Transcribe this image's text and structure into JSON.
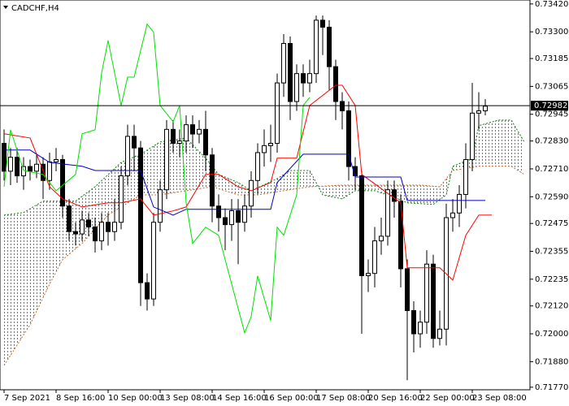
{
  "chart_data": {
    "type": "candlestick",
    "title": "CADCHF,H4",
    "up_color": "#ffffff",
    "down_color": "#000000",
    "open": [
      0.7282,
      0.727,
      0.7276,
      0.7268,
      0.7272,
      0.727,
      0.7273,
      0.7266,
      0.7274,
      0.7275,
      0.7255,
      0.7244,
      0.7243,
      0.7249,
      0.7246,
      0.724,
      0.7248,
      0.7244,
      0.7248,
      0.7268,
      0.7285,
      0.728,
      0.7222,
      0.7215,
      0.7248,
      0.7262,
      0.7288,
      0.7282,
      0.7283,
      0.729,
      0.7286,
      0.7288,
      0.7277,
      0.7255,
      0.725,
      0.7247,
      0.7253,
      0.7248,
      0.7255,
      0.7266,
      0.7278,
      0.7281,
      0.7282,
      0.7308,
      0.7325,
      0.73,
      0.7312,
      0.7308,
      0.7312,
      0.7335,
      0.7332,
      0.7315,
      0.73,
      0.7296,
      0.7272,
      0.7268,
      0.7225,
      0.7226,
      0.724,
      0.7242,
      0.7262,
      0.7257,
      0.7228,
      0.721,
      0.72,
      0.7205,
      0.723,
      0.7198,
      0.7202,
      0.725,
      0.7252,
      0.726,
      0.7275,
      0.7295,
      0.7296
    ],
    "high": [
      0.7288,
      0.728,
      0.728,
      0.7276,
      0.7275,
      0.7277,
      0.7276,
      0.7278,
      0.728,
      0.7277,
      0.7258,
      0.7248,
      0.7253,
      0.7252,
      0.725,
      0.7252,
      0.7252,
      0.7258,
      0.7272,
      0.729,
      0.729,
      0.7283,
      0.7226,
      0.7252,
      0.7266,
      0.7292,
      0.7292,
      0.7288,
      0.7294,
      0.7294,
      0.7292,
      0.7296,
      0.728,
      0.726,
      0.7254,
      0.7258,
      0.7258,
      0.726,
      0.727,
      0.7282,
      0.7288,
      0.729,
      0.7312,
      0.7329,
      0.7328,
      0.7316,
      0.7316,
      0.7318,
      0.7337,
      0.7337,
      0.7335,
      0.7318,
      0.7304,
      0.73,
      0.7276,
      0.727,
      0.7232,
      0.7246,
      0.725,
      0.7266,
      0.7266,
      0.726,
      0.7232,
      0.7214,
      0.721,
      0.7236,
      0.7234,
      0.721,
      0.7256,
      0.7258,
      0.7264,
      0.7282,
      0.7308,
      0.7304,
      0.7301
    ],
    "low": [
      0.7266,
      0.7264,
      0.7265,
      0.7262,
      0.7266,
      0.7267,
      0.7258,
      0.7262,
      0.727,
      0.725,
      0.724,
      0.7238,
      0.724,
      0.7242,
      0.7235,
      0.7236,
      0.7238,
      0.724,
      0.7245,
      0.7264,
      0.727,
      0.7212,
      0.721,
      0.7212,
      0.7244,
      0.7258,
      0.7278,
      0.7276,
      0.7278,
      0.728,
      0.7282,
      0.727,
      0.7248,
      0.7244,
      0.7236,
      0.724,
      0.723,
      0.7244,
      0.725,
      0.726,
      0.7272,
      0.7274,
      0.7278,
      0.7302,
      0.7292,
      0.7296,
      0.7302,
      0.7304,
      0.7308,
      0.732,
      0.7305,
      0.7292,
      0.7288,
      0.7266,
      0.7262,
      0.72,
      0.7218,
      0.722,
      0.7234,
      0.7238,
      0.725,
      0.722,
      0.718,
      0.7192,
      0.7194,
      0.72,
      0.7194,
      0.7195,
      0.7195,
      0.7244,
      0.7246,
      0.7254,
      0.727,
      0.7288,
      0.7294
    ],
    "close": [
      0.727,
      0.7276,
      0.7268,
      0.7272,
      0.727,
      0.7273,
      0.7266,
      0.7274,
      0.7275,
      0.7255,
      0.7244,
      0.7243,
      0.7249,
      0.7246,
      0.724,
      0.7248,
      0.7244,
      0.7248,
      0.7268,
      0.7285,
      0.728,
      0.7222,
      0.7215,
      0.7248,
      0.7262,
      0.7288,
      0.7282,
      0.7283,
      0.729,
      0.7286,
      0.7288,
      0.7277,
      0.7255,
      0.725,
      0.7247,
      0.7253,
      0.7248,
      0.7255,
      0.7266,
      0.7278,
      0.7281,
      0.7282,
      0.7308,
      0.7325,
      0.73,
      0.7312,
      0.7308,
      0.7312,
      0.7335,
      0.7332,
      0.7315,
      0.73,
      0.7296,
      0.7272,
      0.7268,
      0.7225,
      0.7226,
      0.724,
      0.7242,
      0.7262,
      0.7257,
      0.7228,
      0.721,
      0.72,
      0.7205,
      0.723,
      0.7198,
      0.7202,
      0.725,
      0.7252,
      0.726,
      0.7275,
      0.7295,
      0.7296,
      0.7298
    ],
    "lines": [
      {
        "color": "#ff0000",
        "style": "solid",
        "x": [
          0,
          4,
          7,
          9,
          12,
          16,
          18,
          21,
          23,
          26,
          28,
          31,
          33,
          36,
          38,
          41,
          42,
          45,
          47,
          51,
          52,
          54,
          55,
          61,
          62,
          67,
          69,
          71,
          73,
          75
        ],
        "values": [
          0.72861,
          0.72843,
          0.72633,
          0.72581,
          0.72546,
          0.72564,
          0.72564,
          0.72581,
          0.72511,
          0.72529,
          0.72546,
          0.72686,
          0.72686,
          0.72633,
          0.72616,
          0.72651,
          0.72756,
          0.72756,
          0.72983,
          0.7307,
          0.7307,
          0.72983,
          0.72686,
          0.72564,
          0.72284,
          0.72284,
          0.72231,
          0.72424,
          0.72511,
          0.72511
        ]
      },
      {
        "color": "#0000cc",
        "style": "solid",
        "x": [
          0,
          4,
          7,
          12,
          14,
          21,
          23,
          26,
          28,
          41,
          42,
          46,
          53,
          54,
          61,
          62,
          74
        ],
        "values": [
          0.72791,
          0.72791,
          0.72738,
          0.72721,
          0.72703,
          0.72703,
          0.72546,
          0.72511,
          0.72536,
          0.72536,
          0.72651,
          0.72773,
          0.72773,
          0.72675,
          0.72675,
          0.72574,
          0.72574
        ]
      },
      {
        "color": "#00e000",
        "style": "solid",
        "x": [
          0,
          1,
          3,
          6,
          8,
          11,
          12,
          14,
          15,
          16,
          18,
          19,
          20,
          22,
          23,
          24,
          26,
          27,
          28,
          29,
          31,
          33,
          35,
          37,
          38,
          39,
          41,
          42,
          43,
          45,
          46,
          47
        ],
        "values": [
          0.72633,
          0.72878,
          0.72703,
          0.72686,
          0.72616,
          0.72686,
          0.72861,
          0.72878,
          0.73123,
          0.73263,
          0.72983,
          0.73105,
          0.73105,
          0.73333,
          0.73298,
          0.72983,
          0.72913,
          0.72983,
          0.72564,
          0.72389,
          0.72459,
          0.72424,
          0.72214,
          0.72004,
          0.72074,
          0.72249,
          0.72057,
          0.72459,
          0.72424,
          0.72598,
          0.72983,
          0.73018
        ]
      },
      {
        "color": "#008000",
        "style": "dotted",
        "x": [
          0,
          3,
          6,
          11,
          14,
          18,
          21,
          24,
          28,
          31,
          33,
          36,
          38,
          42,
          44,
          47,
          49,
          52,
          54,
          57,
          59,
          62,
          66,
          68,
          69,
          72,
          73,
          76,
          78,
          80
        ],
        "values": [
          0.72511,
          0.72522,
          0.72571,
          0.72571,
          0.72633,
          0.72738,
          0.72773,
          0.72826,
          0.72843,
          0.72756,
          0.72686,
          0.72651,
          0.72616,
          0.72668,
          0.72703,
          0.72703,
          0.72598,
          0.72581,
          0.72616,
          0.72616,
          0.72598,
          0.72564,
          0.72557,
          0.72598,
          0.72721,
          0.72756,
          0.72896,
          0.7292,
          0.7292,
          0.72826
        ]
      },
      {
        "color": "#d2691e",
        "style": "dotted",
        "x": [
          0,
          4,
          7,
          9,
          12,
          16,
          21,
          24,
          28,
          32,
          36,
          39,
          43,
          47,
          52,
          58,
          64,
          67,
          69,
          73,
          78,
          80
        ],
        "values": [
          0.71864,
          0.72039,
          0.72214,
          0.72319,
          0.72389,
          0.72511,
          0.72598,
          0.72598,
          0.72616,
          0.72633,
          0.72598,
          0.72598,
          0.72616,
          0.72633,
          0.7264,
          0.7264,
          0.7264,
          0.72633,
          0.72703,
          0.72721,
          0.72721,
          0.72686
        ]
      }
    ],
    "cloud_color": "#2e8b2e",
    "current_price": 0.72982,
    "xlim": [
      -0.625,
      80.875
    ],
    "ylim": [
      0.71759,
      0.73437
    ],
    "xticks": [
      {
        "value": 0,
        "label": "7 Sep 2021"
      },
      {
        "value": 8,
        "label": "8 Sep 16:00"
      },
      {
        "value": 16,
        "label": "10 Sep 00:00"
      },
      {
        "value": 24,
        "label": "13 Sep 08:00"
      },
      {
        "value": 32,
        "label": "14 Sep 16:00"
      },
      {
        "value": 40,
        "label": "16 Sep 00:00"
      },
      {
        "value": 48,
        "label": "17 Sep 08:00"
      },
      {
        "value": 56,
        "label": "20 Sep 16:00"
      },
      {
        "value": 64,
        "label": "22 Sep 00:00"
      },
      {
        "value": 72,
        "label": "23 Sep 08:00"
      }
    ],
    "yticks": [
      {
        "value": 0.7342,
        "label": "0.73420"
      },
      {
        "value": 0.733,
        "label": "0.73300"
      },
      {
        "value": 0.73185,
        "label": "0.73185"
      },
      {
        "value": 0.73065,
        "label": "0.73065"
      },
      {
        "value": 0.72945,
        "label": "0.72945"
      },
      {
        "value": 0.7283,
        "label": "0.72830"
      },
      {
        "value": 0.7271,
        "label": "0.72710"
      },
      {
        "value": 0.7259,
        "label": "0.72590"
      },
      {
        "value": 0.72475,
        "label": "0.72475"
      },
      {
        "value": 0.72355,
        "label": "0.72355"
      },
      {
        "value": 0.72235,
        "label": "0.72235"
      },
      {
        "value": 0.7212,
        "label": "0.72120"
      },
      {
        "value": 0.72,
        "label": "0.72000"
      },
      {
        "value": 0.7188,
        "label": "0.71880"
      },
      {
        "value": 0.7177,
        "label": "0.71770"
      }
    ]
  }
}
